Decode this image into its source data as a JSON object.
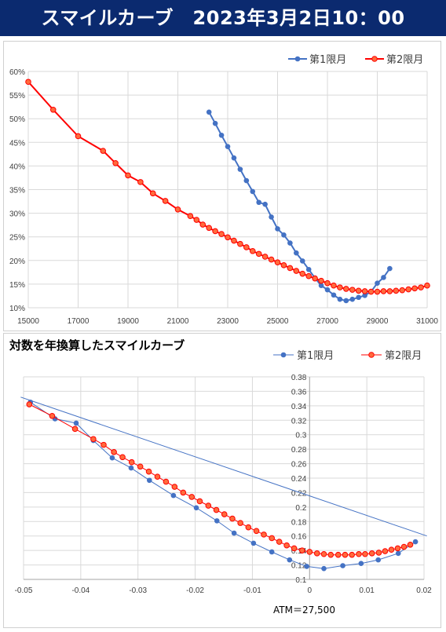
{
  "header": {
    "title": "スマイルカーブ　2023年3月2日10：00"
  },
  "colors": {
    "series1": "#4472c4",
    "series2": "#ff0000",
    "series2_fill": "#ff6b3d",
    "header_bg": "#0b2a6f"
  },
  "chart_data": [
    {
      "type": "line",
      "title": "",
      "legend": [
        "第1限月",
        "第2限月"
      ],
      "legend_position": "top-right",
      "xlim": [
        15000,
        31000
      ],
      "ylim": [
        0.1,
        0.6
      ],
      "x_ticks": [
        "15000",
        "17000",
        "19000",
        "21000",
        "23000",
        "25000",
        "27000",
        "29000",
        "31000"
      ],
      "y_ticks": [
        "10%",
        "15%",
        "20%",
        "25%",
        "30%",
        "35%",
        "40%",
        "45%",
        "50%",
        "55%",
        "60%"
      ],
      "grid": true,
      "series": [
        {
          "name": "第1限月",
          "x": [
            22250,
            22500,
            22750,
            23000,
            23250,
            23500,
            23750,
            24000,
            24250,
            24500,
            24750,
            25000,
            25250,
            25500,
            25750,
            26000,
            26250,
            26500,
            26750,
            27000,
            27250,
            27500,
            27750,
            28000,
            28250,
            28500,
            28750,
            29000,
            29250,
            29500
          ],
          "y": [
            0.514,
            0.49,
            0.465,
            0.441,
            0.417,
            0.393,
            0.369,
            0.346,
            0.323,
            0.319,
            0.292,
            0.267,
            0.254,
            0.237,
            0.216,
            0.199,
            0.181,
            0.163,
            0.147,
            0.138,
            0.127,
            0.118,
            0.115,
            0.118,
            0.122,
            0.126,
            0.134,
            0.152,
            0.164,
            0.183
          ]
        },
        {
          "name": "第2限月",
          "x": [
            15000,
            16000,
            17000,
            18000,
            18500,
            19000,
            19500,
            20000,
            20500,
            21000,
            21500,
            21750,
            22000,
            22250,
            22500,
            22750,
            23000,
            23250,
            23500,
            23750,
            24000,
            24250,
            24500,
            24750,
            25000,
            25250,
            25500,
            25750,
            26000,
            26250,
            26500,
            26750,
            27000,
            27250,
            27500,
            27750,
            28000,
            28250,
            28500,
            28750,
            29000,
            29250,
            29500,
            29750,
            30000,
            30250,
            30500,
            30750,
            31000
          ],
          "y": [
            0.578,
            0.519,
            0.463,
            0.432,
            0.406,
            0.38,
            0.366,
            0.342,
            0.326,
            0.308,
            0.294,
            0.286,
            0.276,
            0.269,
            0.262,
            0.256,
            0.249,
            0.242,
            0.235,
            0.228,
            0.22,
            0.214,
            0.208,
            0.202,
            0.196,
            0.19,
            0.184,
            0.178,
            0.172,
            0.167,
            0.162,
            0.157,
            0.152,
            0.147,
            0.143,
            0.14,
            0.138,
            0.136,
            0.135,
            0.134,
            0.134,
            0.135,
            0.135,
            0.136,
            0.137,
            0.139,
            0.141,
            0.143,
            0.147
          ]
        }
      ]
    },
    {
      "type": "line",
      "title": "対数を年換算したスマイルカーブ",
      "legend": [
        "第1限月",
        "第2限月"
      ],
      "legend_position": "top-right",
      "xlim": [
        -0.05,
        0.02
      ],
      "ylim": [
        0.1,
        0.38
      ],
      "x_ticks": [
        "-0.05",
        "-0.04",
        "-0.03",
        "-0.02",
        "-0.01",
        "0",
        "0.01",
        "0.02"
      ],
      "y_ticks": [
        "0.1",
        "0.12",
        "0.14",
        "0.16",
        "0.18",
        "0.2",
        "0.22",
        "0.24",
        "0.26",
        "0.28",
        "0.3",
        "0.32",
        "0.34",
        "0.36",
        "0.38"
      ],
      "grid": true,
      "annotation": "ATM＝27,500",
      "series": [
        {
          "name": "第1限月",
          "trend_line": [
            [
              -0.0505,
              0.352
            ],
            [
              0.0205,
              0.16
            ]
          ],
          "x": [
            -0.0488,
            -0.0445,
            -0.0408,
            -0.0378,
            -0.0345,
            -0.0312,
            -0.028,
            -0.0238,
            -0.0198,
            -0.0162,
            -0.0132,
            -0.0098,
            -0.0066,
            -0.0035,
            -0.0005,
            0.0025,
            0.0058,
            0.009,
            0.012,
            0.0155,
            0.0185
          ],
          "y": [
            0.345,
            0.322,
            0.316,
            0.292,
            0.268,
            0.254,
            0.237,
            0.216,
            0.199,
            0.181,
            0.164,
            0.15,
            0.138,
            0.127,
            0.118,
            0.115,
            0.119,
            0.122,
            0.127,
            0.136,
            0.152
          ]
        },
        {
          "name": "第2限月",
          "x": [
            -0.049,
            -0.045,
            -0.041,
            -0.0378,
            -0.036,
            -0.0342,
            -0.0327,
            -0.0311,
            -0.0296,
            -0.0281,
            -0.0266,
            -0.0251,
            -0.0236,
            -0.0221,
            -0.0206,
            -0.0192,
            -0.0177,
            -0.0163,
            -0.0149,
            -0.0135,
            -0.0121,
            -0.0107,
            -0.0093,
            -0.008,
            -0.0066,
            -0.0053,
            -0.004,
            -0.0027,
            -0.0013,
            0.0,
            0.0013,
            0.0025,
            0.0037,
            0.005,
            0.0062,
            0.0074,
            0.0086,
            0.0097,
            0.0109,
            0.0121,
            0.0132,
            0.0143,
            0.0154,
            0.0165,
            0.0176
          ],
          "y": [
            0.342,
            0.326,
            0.308,
            0.294,
            0.286,
            0.276,
            0.269,
            0.262,
            0.256,
            0.249,
            0.242,
            0.235,
            0.228,
            0.22,
            0.214,
            0.208,
            0.202,
            0.196,
            0.19,
            0.184,
            0.178,
            0.172,
            0.167,
            0.162,
            0.157,
            0.152,
            0.147,
            0.143,
            0.14,
            0.138,
            0.136,
            0.135,
            0.134,
            0.134,
            0.134,
            0.134,
            0.135,
            0.135,
            0.136,
            0.137,
            0.139,
            0.141,
            0.143,
            0.145,
            0.148
          ]
        }
      ]
    }
  ]
}
